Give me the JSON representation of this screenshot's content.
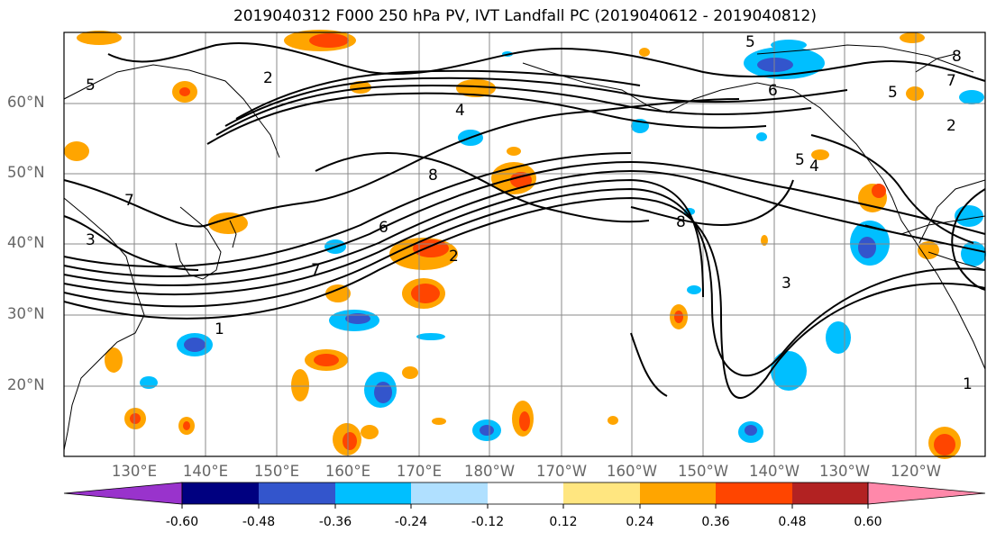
{
  "title": "2019040312 F000 250 hPa PV, IVT Landfall PC (2019040612 - 2019040812)",
  "lat_labels": [
    "60°N",
    "50°N",
    "40°N",
    "30°N",
    "20°N"
  ],
  "lon_labels": [
    "130°E",
    "140°E",
    "150°E",
    "160°E",
    "170°E",
    "180°W",
    "170°W",
    "160°W",
    "150°W",
    "140°W",
    "130°W",
    "120°W"
  ],
  "colorbar": {
    "colors": [
      "#9933cc",
      "#000080",
      "#3355cc",
      "#00bfff",
      "#b0e0ff",
      "#ffffff",
      "#ffe680",
      "#ffa500",
      "#ff4500",
      "#b22222",
      "#ff88aa"
    ],
    "tick_labels": [
      "-0.60",
      "-0.48",
      "-0.36",
      "-0.24",
      "-0.12",
      "0.12",
      "0.24",
      "0.36",
      "0.48",
      "0.60"
    ]
  },
  "contour_labels": [
    "1",
    "2",
    "3",
    "4",
    "5",
    "6",
    "7",
    "8"
  ]
}
